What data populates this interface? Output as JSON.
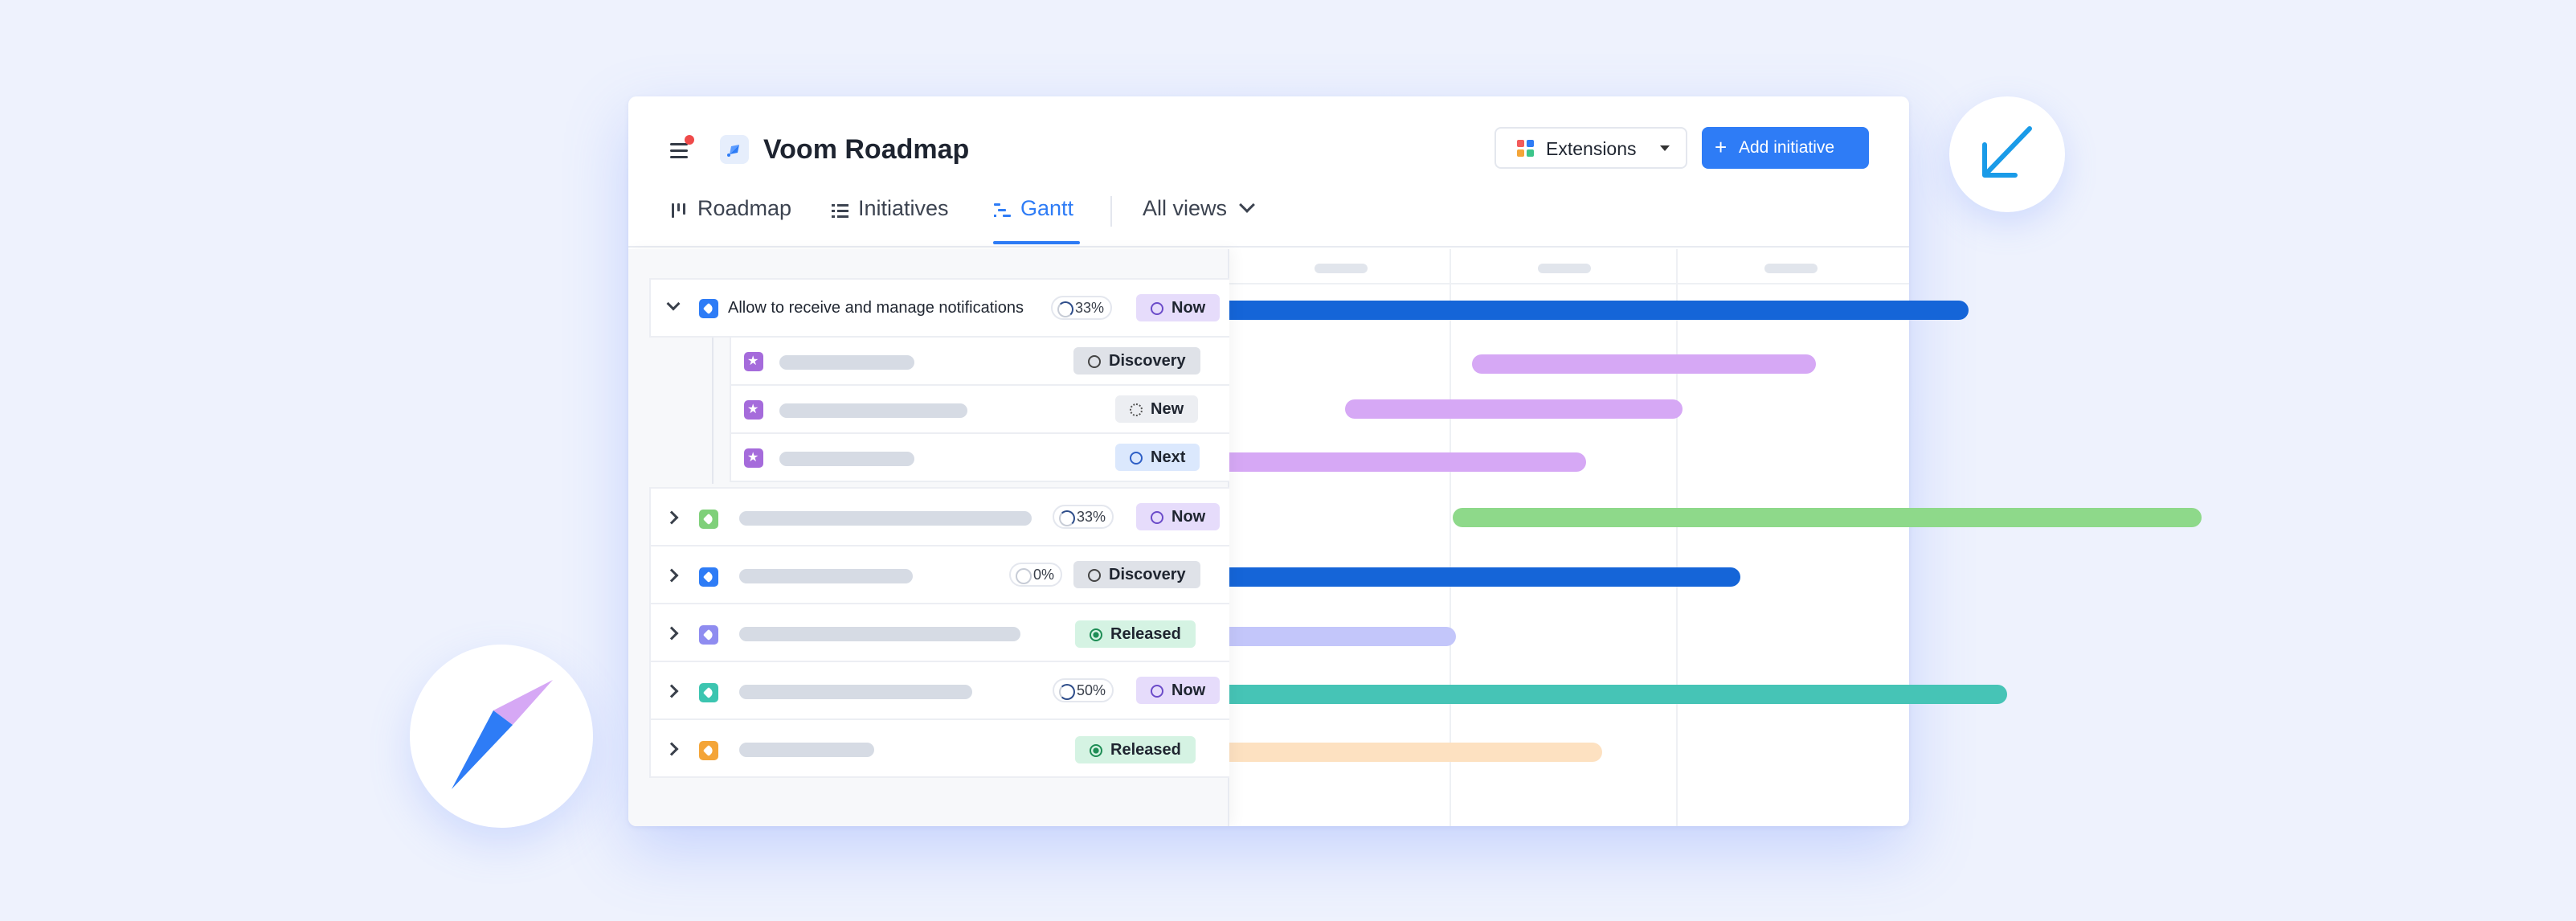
{
  "app": {
    "title": "Voom Roadmap",
    "extensions_label": "Extensions",
    "add_initiative_label": "Add initiative",
    "add_initiative_plus": "+"
  },
  "tabs": [
    {
      "label": "Roadmap",
      "icon": "roadmap-icon",
      "active": false
    },
    {
      "label": "Initiatives",
      "icon": "list-icon",
      "active": false
    },
    {
      "label": "Gantt",
      "icon": "gantt-icon",
      "active": true
    }
  ],
  "all_views_label": "All views",
  "rows": [
    {
      "title": "Allow to receive and manage notifications",
      "progress": "33%",
      "status": "Now",
      "expanded": true,
      "icon_color": "#2e7cf6"
    },
    {
      "progress": null,
      "status": "Discovery",
      "child": true,
      "icon_color": "#a56bdb"
    },
    {
      "progress": null,
      "status": "New",
      "child": true,
      "icon_color": "#a56bdb"
    },
    {
      "progress": null,
      "status": "Next",
      "child": true,
      "icon_color": "#a56bdb"
    },
    {
      "progress": "33%",
      "status": "Now",
      "icon_color": "#7fd07a"
    },
    {
      "progress": "0%",
      "status": "Discovery",
      "icon_color": "#2e7cf6"
    },
    {
      "progress": null,
      "status": "Released",
      "icon_color": "#8f8cf0"
    },
    {
      "progress": "50%",
      "status": "Now",
      "icon_color": "#3cc5b0"
    },
    {
      "progress": null,
      "status": "Released",
      "icon_color": "#f4a538"
    }
  ],
  "colors": {
    "accent": "#2e7cf6",
    "bar_blue": "#1565d8",
    "bar_violet": "#d6a8f5",
    "bar_green": "#8ed98a",
    "bar_lavender": "#c3c6fa",
    "bar_teal": "#46c4b6",
    "bar_peach": "#fde1c1",
    "notification_dot": "#ef4a4a"
  },
  "decor": {
    "left_circle_icon": "compass-icon",
    "right_circle_icon": "arrow-down-left-icon"
  }
}
